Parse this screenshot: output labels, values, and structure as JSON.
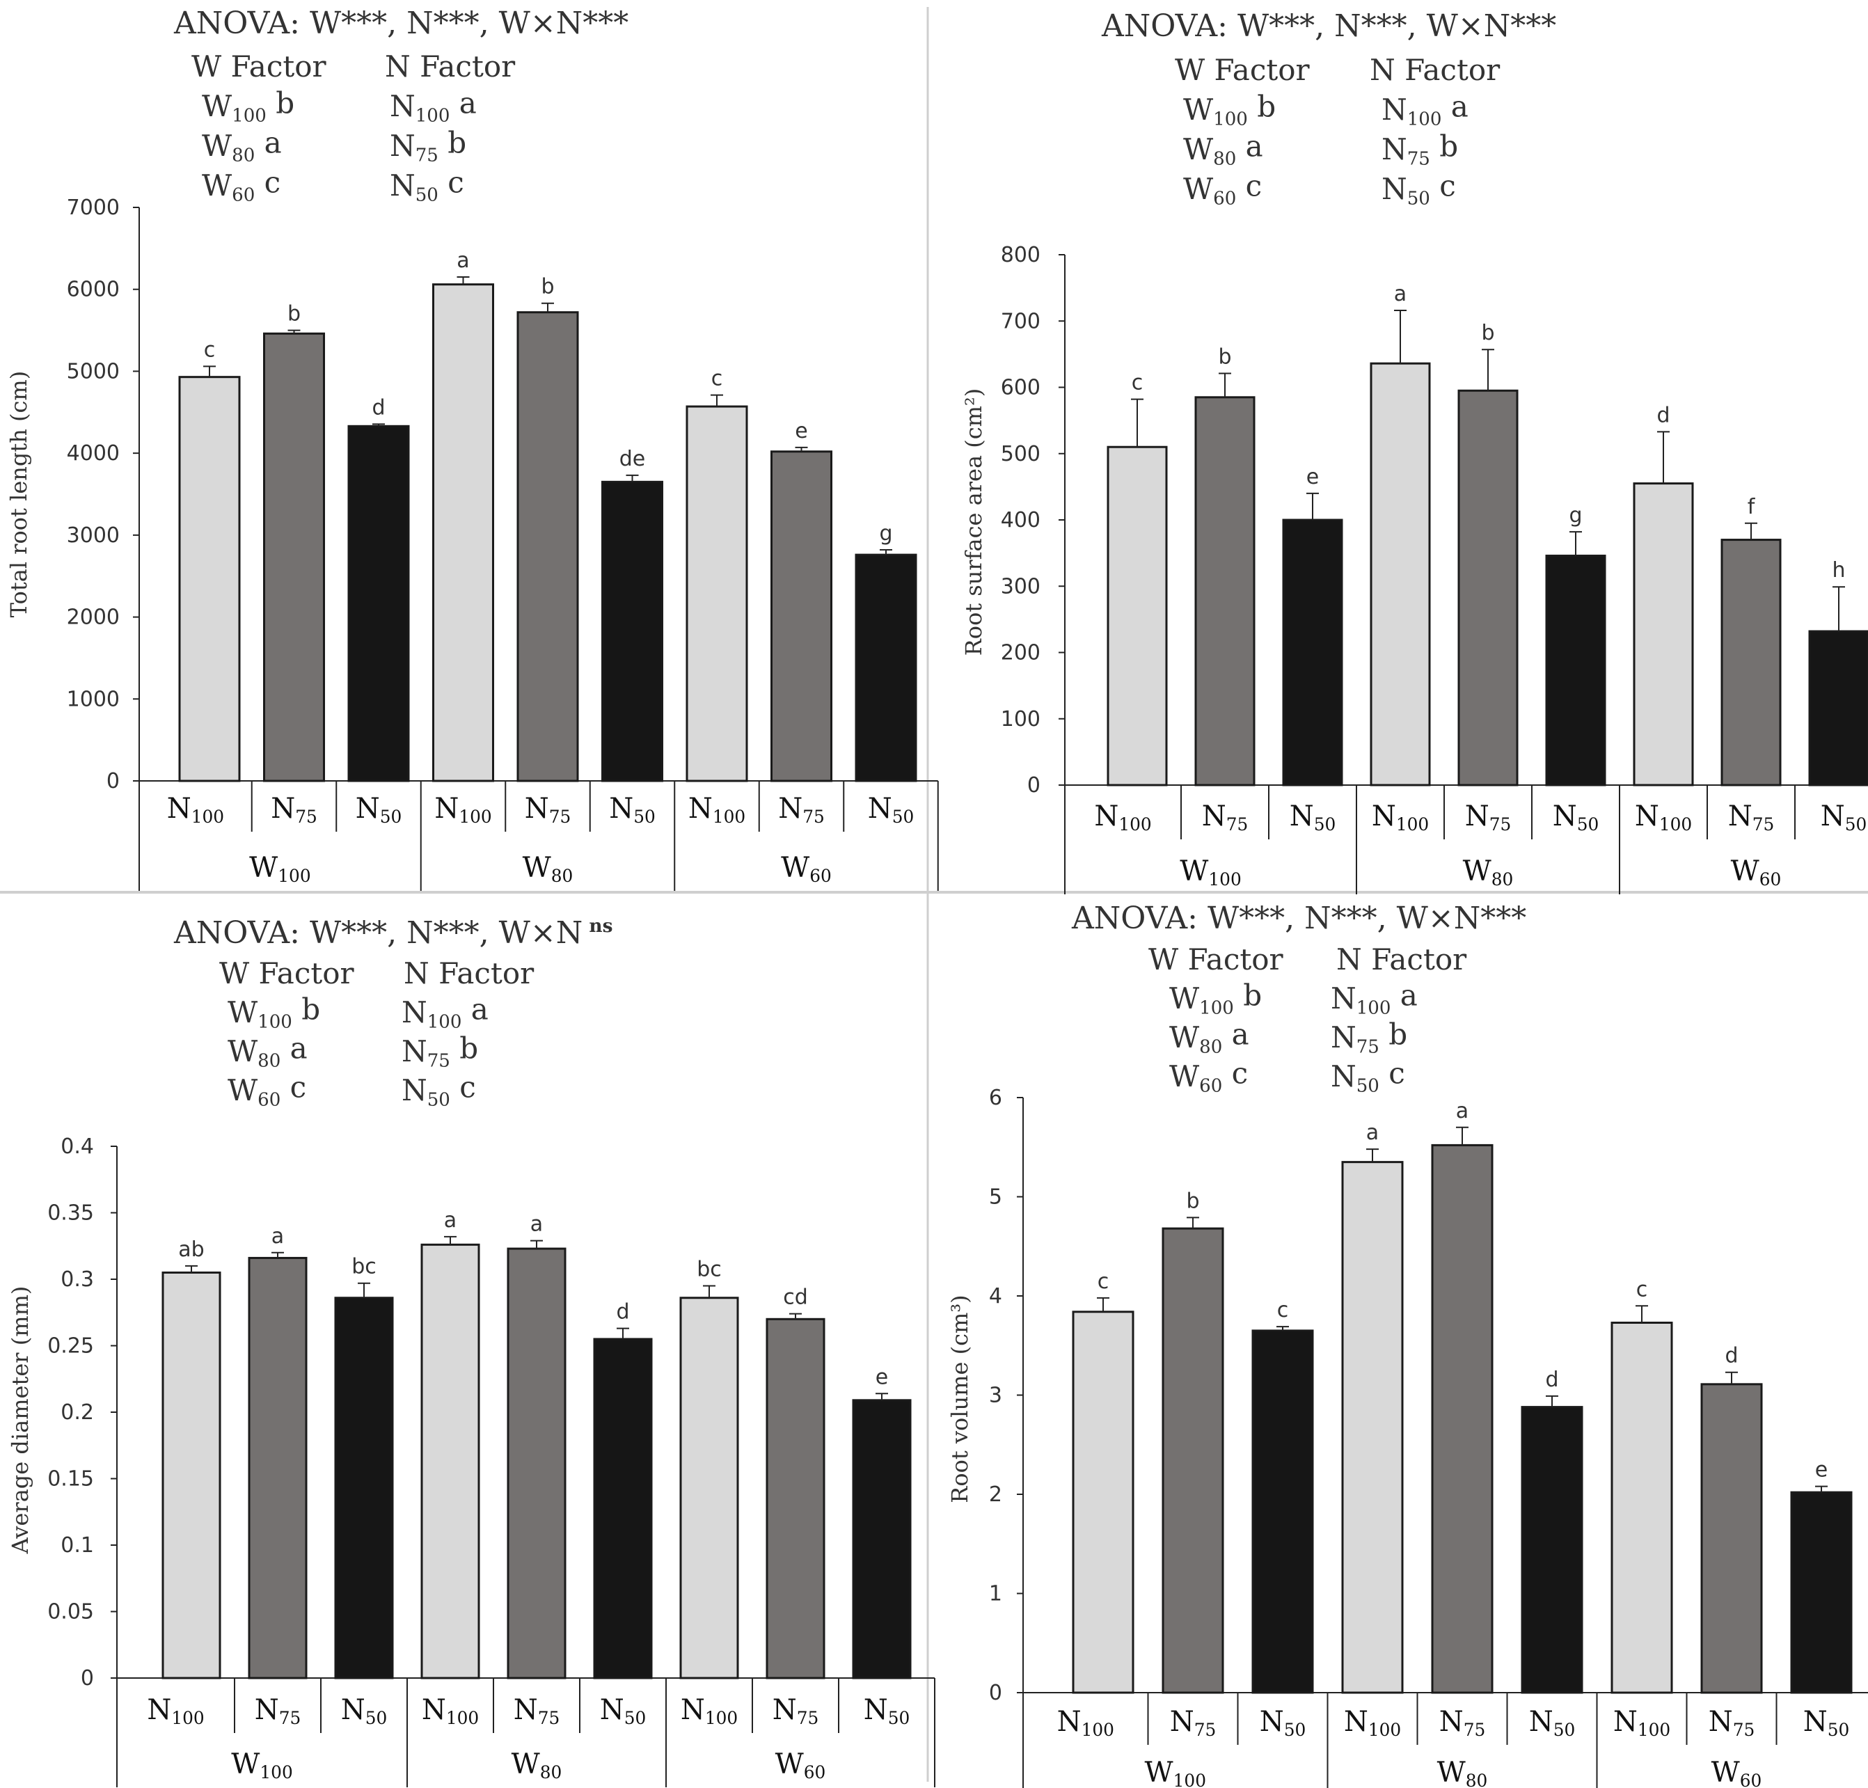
{
  "chart_data": [
    {
      "type": "bar",
      "anova": {
        "prefix": "ANOVA: ",
        "w": "W***",
        "n": "N***",
        "wxn": "W×N***",
        "sep": ", ",
        "sup": ""
      },
      "factors": {
        "w_header": "W Factor",
        "n_header": "N Factor",
        "w_letters": [
          [
            "W",
            "100",
            "b"
          ],
          [
            "W",
            "80",
            "a"
          ],
          [
            "W",
            "60",
            "c"
          ]
        ],
        "n_letters": [
          [
            "N",
            "100",
            "a"
          ],
          [
            "N",
            "75",
            "b"
          ],
          [
            "N",
            "50",
            "c"
          ]
        ]
      },
      "ylabel": "Total root length (cm)",
      "ylim": [
        0,
        7000
      ],
      "yticks": [
        0,
        1000,
        2000,
        3000,
        4000,
        5000,
        6000,
        7000
      ],
      "groups": [
        "W100",
        "W80",
        "W60"
      ],
      "categories": [
        "N100",
        "N75",
        "N50",
        "N100",
        "N75",
        "N50",
        "N100",
        "N75",
        "N50"
      ],
      "values": [
        4930,
        5460,
        4330,
        6060,
        5720,
        3650,
        4570,
        4020,
        2760
      ],
      "errors": [
        130,
        40,
        25,
        90,
        110,
        80,
        140,
        50,
        60
      ],
      "letters": [
        "c",
        "b",
        "d",
        "a",
        "b",
        "de",
        "c",
        "e",
        "g"
      ]
    },
    {
      "type": "bar",
      "anova": {
        "prefix": "ANOVA: ",
        "w": "W***",
        "n": "N***",
        "wxn": "W×N***",
        "sep": ", ",
        "sup": ""
      },
      "factors": {
        "w_header": "W Factor",
        "n_header": "N Factor",
        "w_letters": [
          [
            "W",
            "100",
            "b"
          ],
          [
            "W",
            "80",
            "a"
          ],
          [
            "W",
            "60",
            "c"
          ]
        ],
        "n_letters": [
          [
            "N",
            "100",
            "a"
          ],
          [
            "N",
            "75",
            "b"
          ],
          [
            "N",
            "50",
            "c"
          ]
        ]
      },
      "ylabel": "Root surface area (cm²)",
      "ylim": [
        0,
        800
      ],
      "yticks": [
        0,
        100,
        200,
        300,
        400,
        500,
        600,
        700,
        800
      ],
      "groups": [
        "W100",
        "W80",
        "W60"
      ],
      "categories": [
        "N100",
        "N75",
        "N50",
        "N100",
        "N75",
        "N50",
        "N100",
        "N75",
        "N50"
      ],
      "values": [
        510,
        585,
        400,
        636,
        595,
        346,
        455,
        370,
        232
      ],
      "errors": [
        72,
        36,
        40,
        80,
        62,
        36,
        78,
        25,
        67
      ],
      "letters": [
        "c",
        "b",
        "e",
        "a",
        "b",
        "g",
        "d",
        "f",
        "h"
      ]
    },
    {
      "type": "bar",
      "anova": {
        "prefix": "ANOVA: ",
        "w": "W***",
        "n": "N***",
        "wxn": "W×N",
        "sep": ", ",
        "sup": "ns"
      },
      "factors": {
        "w_header": "W Factor",
        "n_header": "N Factor",
        "w_letters": [
          [
            "W",
            "100",
            "b"
          ],
          [
            "W",
            "80",
            "a"
          ],
          [
            "W",
            "60",
            "c"
          ]
        ],
        "n_letters": [
          [
            "N",
            "100",
            "a"
          ],
          [
            "N",
            "75",
            "b"
          ],
          [
            "N",
            "50",
            "c"
          ]
        ]
      },
      "ylabel": "Average diameter (mm)",
      "ylim": [
        0,
        0.4
      ],
      "yticks": [
        0,
        0.05,
        0.1,
        0.15,
        0.2,
        0.25,
        0.3,
        0.35,
        0.4
      ],
      "groups": [
        "W100",
        "W80",
        "W60"
      ],
      "categories": [
        "N100",
        "N75",
        "N50",
        "N100",
        "N75",
        "N50",
        "N100",
        "N75",
        "N50"
      ],
      "values": [
        0.305,
        0.316,
        0.286,
        0.326,
        0.323,
        0.255,
        0.286,
        0.27,
        0.209
      ],
      "errors": [
        0.005,
        0.004,
        0.011,
        0.006,
        0.006,
        0.008,
        0.009,
        0.004,
        0.005
      ],
      "letters": [
        "ab",
        "a",
        "bc",
        "a",
        "a",
        "d",
        "bc",
        "cd",
        "e"
      ]
    },
    {
      "type": "bar",
      "anova": {
        "prefix": "ANOVA: ",
        "w": "W***",
        "n": "N***",
        "wxn": "W×N***",
        "sep": ", ",
        "sup": ""
      },
      "factors": {
        "w_header": "W Factor",
        "n_header": "N Factor",
        "w_letters": [
          [
            "W",
            "100",
            "b"
          ],
          [
            "W",
            "80",
            "a"
          ],
          [
            "W",
            "60",
            "c"
          ]
        ],
        "n_letters": [
          [
            "N",
            "100",
            "a"
          ],
          [
            "N",
            "75",
            "b"
          ],
          [
            "N",
            "50",
            "c"
          ]
        ]
      },
      "ylabel": "Root volume (cm³)",
      "ylim": [
        0,
        6
      ],
      "yticks": [
        0,
        1,
        2,
        3,
        4,
        5,
        6
      ],
      "groups": [
        "W100",
        "W80",
        "W60"
      ],
      "categories": [
        "N100",
        "N75",
        "N50",
        "N100",
        "N75",
        "N50",
        "N100",
        "N75",
        "N50"
      ],
      "values": [
        3.84,
        4.68,
        3.65,
        5.35,
        5.52,
        2.88,
        3.73,
        3.11,
        2.02
      ],
      "errors": [
        0.14,
        0.11,
        0.04,
        0.13,
        0.18,
        0.11,
        0.17,
        0.12,
        0.06
      ],
      "letters": [
        "c",
        "b",
        "c",
        "a",
        "a",
        "d",
        "c",
        "d",
        "e"
      ]
    }
  ]
}
